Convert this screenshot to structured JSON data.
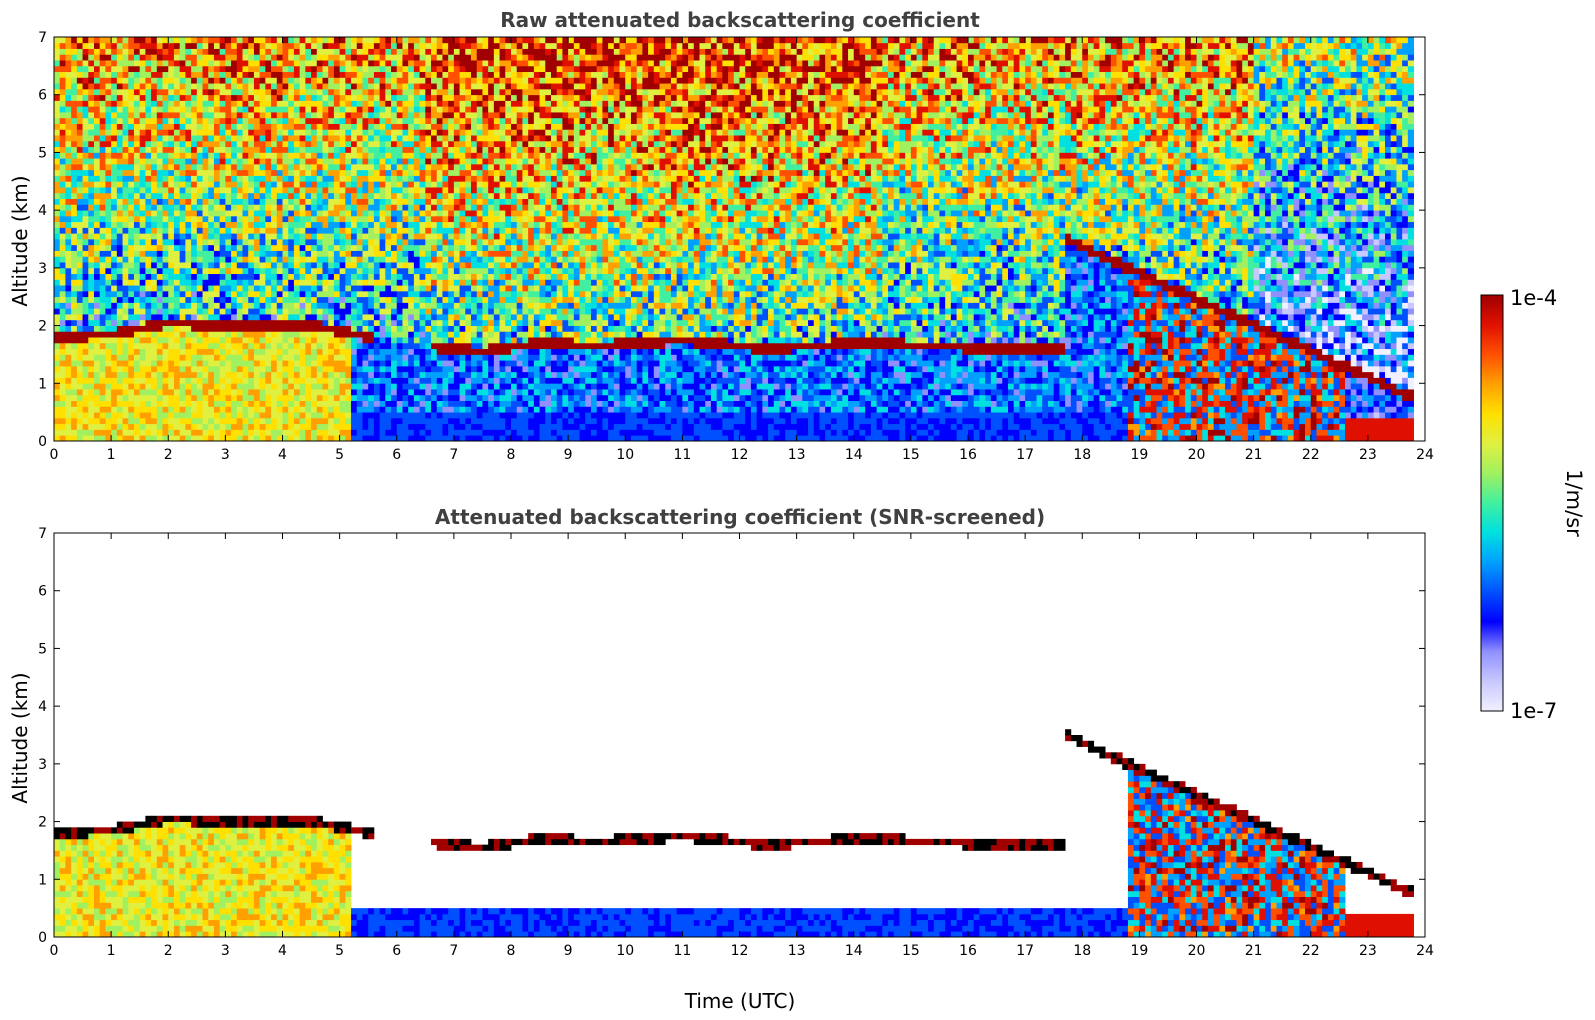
{
  "colorbar": {
    "label": "1/m/sr",
    "max_label": "1e-4",
    "min_label": "1e-7",
    "range": [
      1e-07,
      0.0001
    ],
    "scale": "log",
    "colors": [
      "#f0f0ff",
      "#c8c8ff",
      "#9090ff",
      "#0000ff",
      "#0050ff",
      "#00a0ff",
      "#00e0e0",
      "#40f0a0",
      "#a0f060",
      "#e0f040",
      "#ffe000",
      "#ffa000",
      "#ff5000",
      "#e01000",
      "#a00000"
    ]
  },
  "chart_data": [
    {
      "type": "heatmap",
      "title": "Raw attenuated backscattering coefficient",
      "xlabel": "",
      "ylabel": "Altitude (km)",
      "xlim": [
        0,
        24
      ],
      "ylim": [
        0,
        7
      ],
      "xticks": [
        "0",
        "1",
        "2",
        "3",
        "4",
        "5",
        "6",
        "7",
        "8",
        "9",
        "10",
        "11",
        "12",
        "13",
        "14",
        "15",
        "16",
        "17",
        "18",
        "19",
        "20",
        "21",
        "22",
        "23",
        "24"
      ],
      "yticks": [
        "0",
        "1",
        "2",
        "3",
        "4",
        "5",
        "6",
        "7"
      ],
      "layer_top_km": {
        "x": [
          0,
          1,
          2,
          3,
          4,
          4.6,
          5.5,
          6.5,
          7.5,
          8.5,
          9.5,
          11,
          12.5,
          14,
          15.5,
          16.5
        ],
        "y": [
          1.8,
          1.85,
          2.05,
          2.0,
          2.0,
          2.0,
          1.8,
          1.65,
          1.55,
          1.7,
          1.65,
          1.75,
          1.6,
          1.7,
          1.65,
          1.6
        ]
      },
      "screened": false
    },
    {
      "type": "heatmap",
      "title": "Attenuated backscattering coefficient (SNR-screened)",
      "xlabel": "Time (UTC)",
      "ylabel": "Altitude (km)",
      "xlim": [
        0,
        24
      ],
      "ylim": [
        0,
        7
      ],
      "xticks": [
        "0",
        "1",
        "2",
        "3",
        "4",
        "5",
        "6",
        "7",
        "8",
        "9",
        "10",
        "11",
        "12",
        "13",
        "14",
        "15",
        "16",
        "17",
        "18",
        "19",
        "20",
        "21",
        "22",
        "23",
        "24"
      ],
      "yticks": [
        "0",
        "1",
        "2",
        "3",
        "4",
        "5",
        "6",
        "7"
      ],
      "screened": true
    }
  ]
}
